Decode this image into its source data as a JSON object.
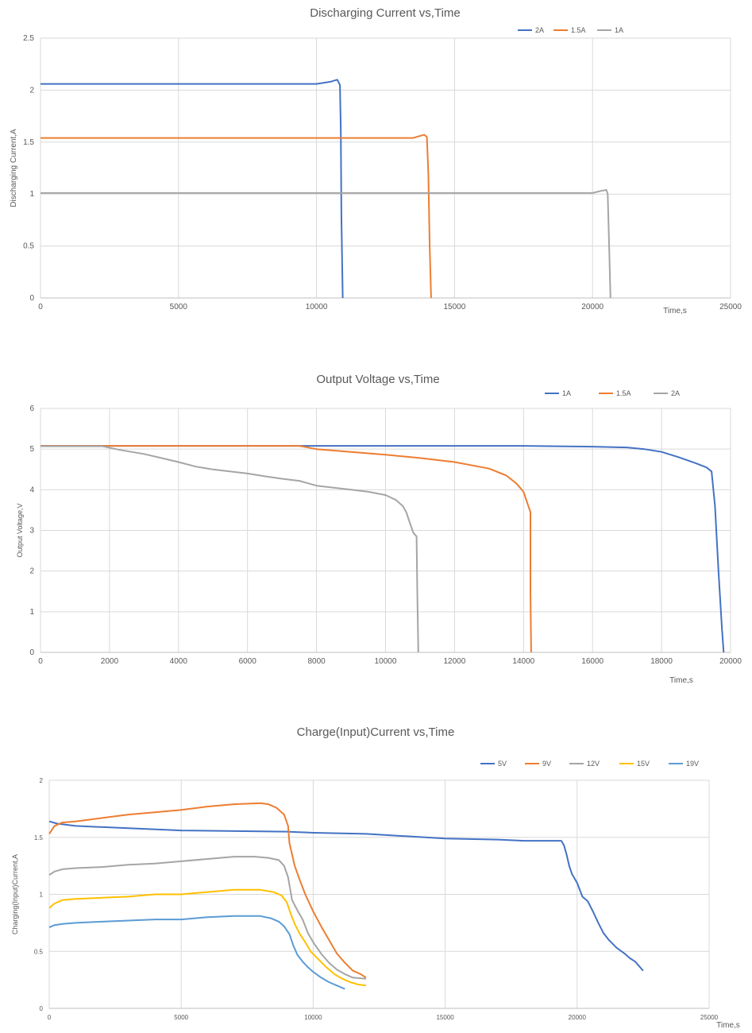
{
  "chart_data": [
    {
      "type": "line",
      "title": "Discharging Current vs,Time",
      "xlabel": "Time,s",
      "ylabel": "Discharging Current,A",
      "xlim": [
        0,
        25000
      ],
      "ylim": [
        0,
        2.5
      ],
      "xticks": [
        "0",
        "5000",
        "10000",
        "15000",
        "20000",
        "25000"
      ],
      "yticks": [
        "0",
        "0.5",
        "1",
        "1.5",
        "2",
        "2.5"
      ],
      "grid": true,
      "legend": "top-right",
      "series": [
        {
          "name": "2A",
          "color": "#4472C4",
          "x": [
            0,
            10000,
            10500,
            10750,
            10850,
            10880,
            10900,
            10950
          ],
          "y": [
            2.06,
            2.06,
            2.08,
            2.1,
            2.05,
            1.6,
            0.8,
            0
          ]
        },
        {
          "name": "1.5A",
          "color": "#ED7D31",
          "x": [
            0,
            13500,
            13900,
            14000,
            14050,
            14100,
            14150
          ],
          "y": [
            1.54,
            1.54,
            1.57,
            1.55,
            1.2,
            0.5,
            0
          ]
        },
        {
          "name": "1A",
          "color": "#A5A5A5",
          "x": [
            0,
            20000,
            20300,
            20500,
            20550,
            20600,
            20650
          ],
          "y": [
            1.01,
            1.01,
            1.03,
            1.04,
            1.0,
            0.5,
            0
          ]
        }
      ]
    },
    {
      "type": "line",
      "title": "Output Voltage vs,Time",
      "xlabel": "Time,s",
      "ylabel": "Output Voltage,V",
      "xlim": [
        0,
        20000
      ],
      "ylim": [
        0,
        6
      ],
      "xticks": [
        "0",
        "2000",
        "4000",
        "6000",
        "8000",
        "10000",
        "12000",
        "14000",
        "16000",
        "18000",
        "20000"
      ],
      "yticks": [
        "0",
        "1",
        "2",
        "3",
        "4",
        "5",
        "6"
      ],
      "grid": true,
      "legend": "top-right",
      "series": [
        {
          "name": "1A",
          "color": "#4472C4",
          "x": [
            0,
            14000,
            16000,
            17000,
            17500,
            18000,
            18500,
            19000,
            19300,
            19450,
            19550,
            19650,
            19750,
            19800
          ],
          "y": [
            5.08,
            5.08,
            5.06,
            5.04,
            5.0,
            4.93,
            4.8,
            4.65,
            4.55,
            4.45,
            3.6,
            2.0,
            0.6,
            0
          ]
        },
        {
          "name": "1.5A",
          "color": "#ED7D31",
          "x": [
            0,
            7500,
            8000,
            9000,
            10000,
            11000,
            12000,
            13000,
            13500,
            13800,
            14000,
            14100,
            14200,
            14200,
            14220
          ],
          "y": [
            5.08,
            5.08,
            5.0,
            4.93,
            4.86,
            4.78,
            4.68,
            4.52,
            4.35,
            4.15,
            3.95,
            3.7,
            3.45,
            1.5,
            0
          ]
        },
        {
          "name": "2A",
          "color": "#A5A5A5",
          "x": [
            0,
            1800,
            2300,
            3000,
            3500,
            4000,
            4500,
            5000,
            6000,
            6500,
            7000,
            7500,
            8000,
            8500,
            9000,
            9500,
            10000,
            10300,
            10500,
            10600,
            10700,
            10800,
            10900,
            10920,
            10950
          ],
          "y": [
            5.07,
            5.07,
            4.98,
            4.88,
            4.78,
            4.68,
            4.57,
            4.5,
            4.4,
            4.33,
            4.27,
            4.22,
            4.1,
            4.05,
            4.0,
            3.95,
            3.87,
            3.75,
            3.6,
            3.45,
            3.2,
            2.95,
            2.85,
            1.5,
            0
          ]
        }
      ]
    },
    {
      "type": "line",
      "title": "Charge(Input)Current vs,Time",
      "xlabel": "Time,s",
      "ylabel": "Charging(Input)Current,A",
      "xlim": [
        0,
        25000
      ],
      "ylim": [
        0,
        2
      ],
      "xticks": [
        "0",
        "5000",
        "10000",
        "15000",
        "20000",
        "25000"
      ],
      "yticks": [
        "0",
        "0.5",
        "1",
        "1.5",
        "2"
      ],
      "grid": true,
      "legend": "top-right",
      "series": [
        {
          "name": "5V",
          "color": "#4472C4",
          "x": [
            0,
            300,
            1000,
            3000,
            5000,
            9000,
            10000,
            12000,
            13500,
            15000,
            17000,
            18000,
            19400,
            19500,
            19600,
            19700,
            19800,
            20000,
            20200,
            20400,
            20600,
            20800,
            21000,
            21200,
            21500,
            21800,
            22000,
            22200,
            22500
          ],
          "y": [
            1.64,
            1.62,
            1.6,
            1.58,
            1.56,
            1.55,
            1.54,
            1.53,
            1.51,
            1.49,
            1.48,
            1.47,
            1.47,
            1.43,
            1.35,
            1.25,
            1.18,
            1.1,
            0.98,
            0.94,
            0.85,
            0.75,
            0.66,
            0.6,
            0.53,
            0.48,
            0.44,
            0.41,
            0.33
          ]
        },
        {
          "name": "9V",
          "color": "#ED7D31",
          "x": [
            0,
            200,
            500,
            1000,
            2000,
            3000,
            4000,
            5000,
            6000,
            7000,
            8000,
            8300,
            8600,
            8900,
            9050,
            9100,
            9300,
            9500,
            9700,
            10000,
            10300,
            10600,
            10900,
            11200,
            11500,
            11800,
            12000
          ],
          "y": [
            1.53,
            1.6,
            1.63,
            1.64,
            1.67,
            1.7,
            1.72,
            1.74,
            1.77,
            1.79,
            1.8,
            1.79,
            1.76,
            1.7,
            1.6,
            1.45,
            1.25,
            1.12,
            1.0,
            0.85,
            0.72,
            0.6,
            0.48,
            0.4,
            0.33,
            0.3,
            0.27
          ]
        },
        {
          "name": "12V",
          "color": "#A5A5A5",
          "x": [
            0,
            200,
            500,
            1000,
            2000,
            3000,
            4000,
            5000,
            6000,
            7000,
            7800,
            8300,
            8700,
            8900,
            9050,
            9200,
            9400,
            9600,
            9800,
            10000,
            10300,
            10600,
            10900,
            11200,
            11500,
            12000
          ],
          "y": [
            1.17,
            1.2,
            1.22,
            1.23,
            1.24,
            1.26,
            1.27,
            1.29,
            1.31,
            1.33,
            1.33,
            1.32,
            1.3,
            1.25,
            1.15,
            0.95,
            0.86,
            0.78,
            0.66,
            0.58,
            0.48,
            0.4,
            0.34,
            0.3,
            0.27,
            0.26
          ]
        },
        {
          "name": "15V",
          "color": "#FFC000",
          "x": [
            0,
            200,
            500,
            1000,
            2000,
            3000,
            4000,
            5000,
            6000,
            7000,
            8000,
            8500,
            8800,
            9000,
            9150,
            9300,
            9500,
            9700,
            9900,
            10200,
            10500,
            10800,
            11100,
            11400,
            11700,
            12000
          ],
          "y": [
            0.88,
            0.92,
            0.95,
            0.96,
            0.97,
            0.98,
            1.0,
            1.0,
            1.02,
            1.04,
            1.04,
            1.02,
            0.99,
            0.93,
            0.83,
            0.74,
            0.65,
            0.58,
            0.5,
            0.43,
            0.36,
            0.3,
            0.26,
            0.23,
            0.21,
            0.2
          ]
        },
        {
          "name": "19V",
          "color": "#5B9BD5",
          "x": [
            0,
            200,
            500,
            1000,
            2000,
            3000,
            4000,
            5000,
            6000,
            7000,
            8000,
            8400,
            8700,
            8900,
            9100,
            9250,
            9400,
            9600,
            9800,
            10000,
            10300,
            10600,
            10900,
            11200
          ],
          "y": [
            0.71,
            0.73,
            0.74,
            0.75,
            0.76,
            0.77,
            0.78,
            0.78,
            0.8,
            0.81,
            0.81,
            0.79,
            0.76,
            0.72,
            0.65,
            0.55,
            0.47,
            0.41,
            0.36,
            0.32,
            0.27,
            0.23,
            0.2,
            0.17
          ]
        }
      ]
    }
  ]
}
